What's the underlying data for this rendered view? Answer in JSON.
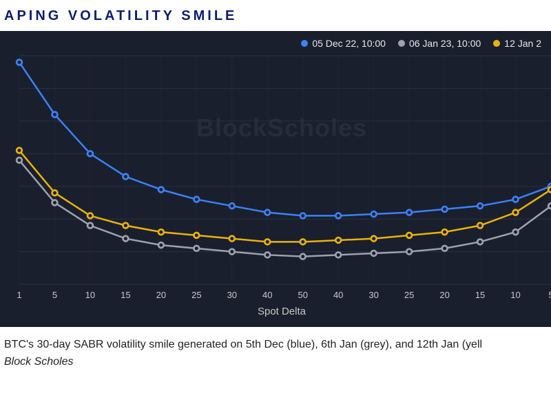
{
  "title": "APING VOLATILITY SMILE",
  "chart": {
    "type": "line",
    "background_color": "#1a1f2e",
    "grid_color": "#2a3142",
    "gridline_width": 1,
    "watermark": "BlockScholes",
    "watermark_color": "rgba(200,200,210,0.08)",
    "watermark_fontsize": 36,
    "x_axis": {
      "label": "Spot Delta",
      "label_fontsize": 15,
      "label_color": "#c9c9c9",
      "ticks": [
        "1",
        "5",
        "10",
        "15",
        "20",
        "25",
        "30",
        "40",
        "50",
        "40",
        "30",
        "25",
        "20",
        "15",
        "10",
        "5"
      ],
      "tick_fontsize": 13,
      "tick_color": "#c9c9c9"
    },
    "y_axis": {
      "min": 30,
      "max": 100,
      "grid_step": 10,
      "show_labels": false
    },
    "line_width": 2.5,
    "marker_style": "circle",
    "marker_radius": 4.5,
    "marker_stroke_width": 1.5,
    "marker_fill": "#1a1f2e",
    "legend": {
      "position": "top-right",
      "fontsize": 14,
      "text_color": "#e8e8e8"
    },
    "series": [
      {
        "name": "05 Dec 22, 10:00",
        "color": "#3b82f6",
        "values": [
          98,
          82,
          70,
          63,
          59,
          56,
          54,
          52,
          51,
          51,
          51.5,
          52,
          53,
          54,
          56,
          60
        ]
      },
      {
        "name": "06 Jan 23, 10:00",
        "color": "#9ca3af",
        "values": [
          68,
          55,
          48,
          44,
          42,
          41,
          40,
          39,
          38.5,
          39,
          39.5,
          40,
          41,
          43,
          46,
          54
        ]
      },
      {
        "name": "12 Jan 2",
        "color": "#eab308",
        "values": [
          71,
          58,
          51,
          48,
          46,
          45,
          44,
          43,
          43,
          43.5,
          44,
          45,
          46,
          48,
          52,
          59
        ]
      }
    ]
  },
  "caption": "BTC's 30-day SABR volatility smile generated on 5th Dec (blue), 6th Jan (grey), and 12th Jan (yell",
  "source": "Block Scholes"
}
